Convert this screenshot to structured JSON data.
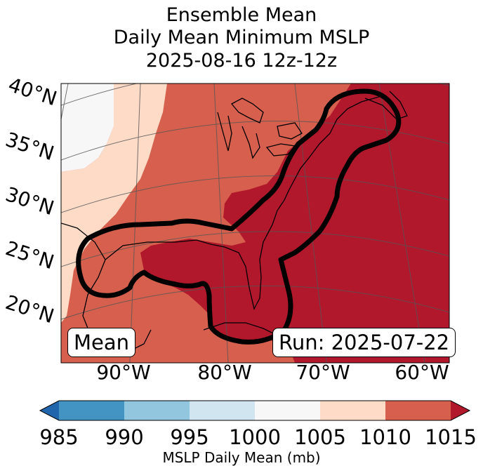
{
  "title": {
    "line1": "Ensemble Mean",
    "line2": "Daily Mean Minimum MSLP",
    "line3": "2025-08-16 12z-12z"
  },
  "map": {
    "lat_labels": [
      "40°N",
      "35°N",
      "30°N",
      "25°N",
      "20°N"
    ],
    "lon_labels": [
      "90°W",
      "80°W",
      "70°W",
      "60°W"
    ],
    "mean_label": "Mean",
    "run_label": "Run: 2025-07-22"
  },
  "colorbar": {
    "label": "MSLP Daily Mean (mb)",
    "ticks": [
      "985",
      "990",
      "995",
      "1000",
      "1005",
      "1010",
      "1015"
    ],
    "bins": [
      {
        "range": "<985",
        "color": "#2166ac"
      },
      {
        "range": "985-990",
        "color": "#4393c3"
      },
      {
        "range": "990-995",
        "color": "#92c5de"
      },
      {
        "range": "995-1000",
        "color": "#d1e5f0"
      },
      {
        "range": "1000-1005",
        "color": "#f7f7f7"
      },
      {
        "range": "1005-1010",
        "color": "#fddbc7"
      },
      {
        "range": "1010-1015",
        "color": "#d6604d"
      },
      {
        "range": ">1015",
        "color": "#b2182b"
      }
    ]
  }
}
